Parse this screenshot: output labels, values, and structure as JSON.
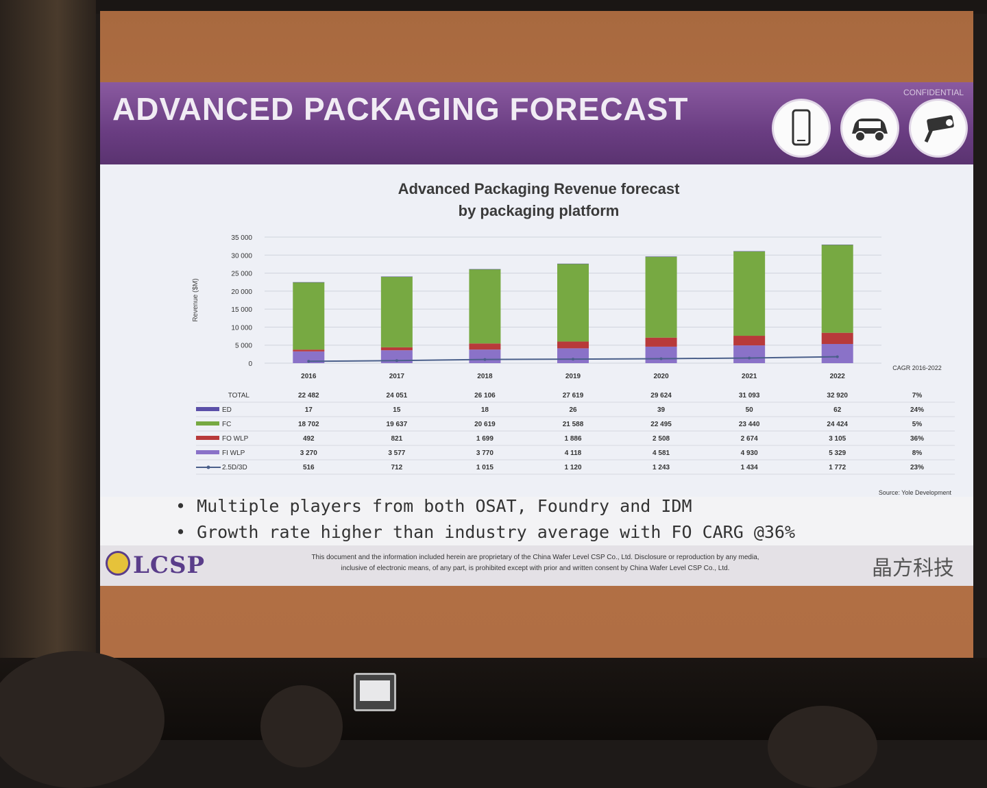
{
  "slide": {
    "title": "ADVANCED PACKAGING FORECAST",
    "confidential": "CONFIDENTIAL",
    "icons": [
      "smartphone-icon",
      "car-icon",
      "security-camera-icon"
    ],
    "bullets": [
      "Multiple players from both OSAT, Foundry and IDM",
      "Growth rate higher than industry average with FO CARG @36%"
    ],
    "footer": {
      "logo_text": "LCSP",
      "disclaimer_line1": "This document and the information included herein are proprietary of the China Wafer Level CSP Co., Ltd. Disclosure or reproduction by any media,",
      "disclaimer_line2": "inclusive of electronic means, of any part, is prohibited except with prior and written consent by China Wafer Level CSP Co., Ltd.",
      "brand_cn": "晶方科技"
    }
  },
  "colors": {
    "banner": "#6a3d82",
    "fc": "#77a942",
    "fo_wlp": "#b83a3a",
    "fi_wlp": "#8a72c8",
    "ed": "#5a4fa8",
    "line_25d3d": "#4a5f8a"
  },
  "chart_data": {
    "type": "bar",
    "title_line1": "Advanced Packaging Revenue forecast",
    "title_line2": "by packaging platform",
    "ylabel": "Revenue ($M)",
    "ylim": [
      0,
      35000
    ],
    "yticks": [
      "35 000",
      "30 000",
      "25 000",
      "20 000",
      "15 000",
      "10 000",
      "5 000",
      "0"
    ],
    "categories": [
      "2016",
      "2017",
      "2018",
      "2019",
      "2020",
      "2021",
      "2022"
    ],
    "cagr_header": "CAGR 2016-2022",
    "total_label": "TOTAL",
    "totals": [
      "22 482",
      "24 051",
      "26 106",
      "27 619",
      "29 624",
      "31 093",
      "32 920"
    ],
    "total_cagr": "7%",
    "series": [
      {
        "name": "ED",
        "kind": "bar",
        "values": [
          17,
          15,
          18,
          26,
          39,
          50,
          62
        ],
        "labels": [
          "17",
          "15",
          "18",
          "26",
          "39",
          "50",
          "62"
        ],
        "cagr": "24%"
      },
      {
        "name": "FC",
        "kind": "bar",
        "values": [
          18702,
          19637,
          20619,
          21588,
          22495,
          23440,
          24424
        ],
        "labels": [
          "18 702",
          "19 637",
          "20 619",
          "21 588",
          "22 495",
          "23 440",
          "24 424"
        ],
        "cagr": "5%"
      },
      {
        "name": "FO WLP",
        "kind": "bar",
        "values": [
          492,
          821,
          1699,
          1886,
          2508,
          2674,
          3105
        ],
        "labels": [
          "492",
          "821",
          "1 699",
          "1 886",
          "2 508",
          "2 674",
          "3 105"
        ],
        "cagr": "36%"
      },
      {
        "name": "FI WLP",
        "kind": "bar",
        "values": [
          3270,
          3577,
          3770,
          4118,
          4581,
          4930,
          5329
        ],
        "labels": [
          "3 270",
          "3 577",
          "3 770",
          "4 118",
          "4 581",
          "4 930",
          "5 329"
        ],
        "cagr": "8%"
      },
      {
        "name": "2.5D/3D",
        "kind": "line",
        "values": [
          516,
          712,
          1015,
          1120,
          1243,
          1434,
          1772
        ],
        "labels": [
          "516",
          "712",
          "1 015",
          "1 120",
          "1 243",
          "1 434",
          "1 772"
        ],
        "cagr": "23%"
      }
    ],
    "source": "Source: Yole Development",
    "grid": true
  }
}
